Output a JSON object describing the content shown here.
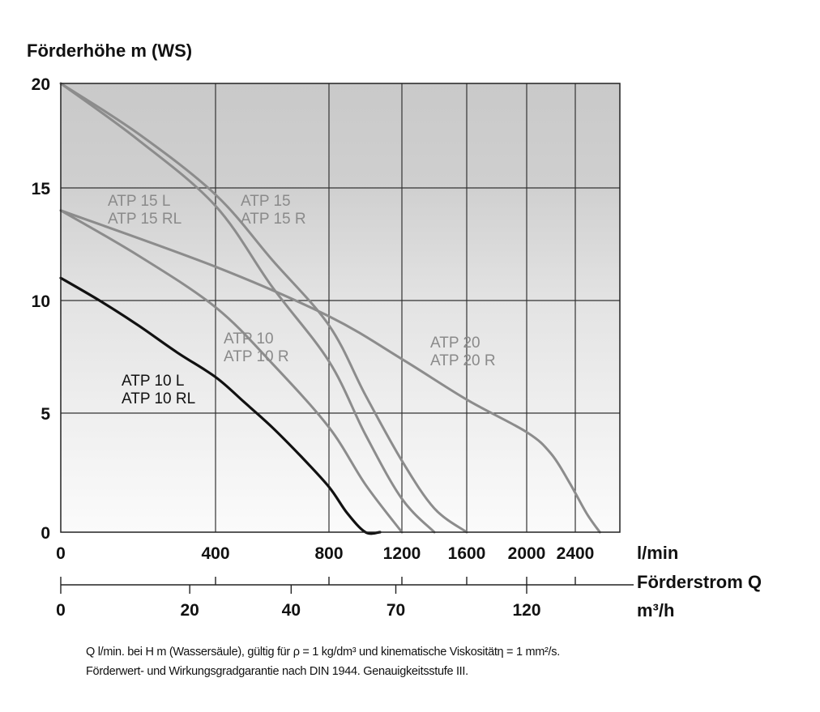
{
  "chart_data": {
    "type": "line",
    "ylabel": "Förderhöhe m (WS)",
    "ylim": [
      0,
      20
    ],
    "y_ticks": [
      "0",
      "5",
      "10",
      "15",
      "20"
    ],
    "x_unit": "l/min",
    "x_axis_title": "Förderstrom Q",
    "x_secondary_unit": "m³/h",
    "xlim": [
      0,
      2600
    ],
    "x_ticks": [
      "0",
      "400",
      "800",
      "1200",
      "1600",
      "2000",
      "2400"
    ],
    "x_secondary_ticks": [
      "0",
      "20",
      "40",
      "70",
      "120"
    ],
    "grid": true,
    "background": "gradient grey (dark at top, white at bottom)",
    "series": [
      {
        "name": "ATP 10 L / ATP 10 RL",
        "label_lines": [
          "ATP 10 L",
          "ATP 10 RL"
        ],
        "color": "#111111",
        "x": [
          0,
          100,
          200,
          300,
          400,
          500,
          600,
          700,
          800,
          900,
          1000,
          1080
        ],
        "y": [
          11,
          10.0,
          8.9,
          7.7,
          6.6,
          5.5,
          4.4,
          3.2,
          1.9,
          0.8,
          0,
          0
        ]
      },
      {
        "name": "ATP 10 / ATP 10 R",
        "label_lines": [
          "ATP 10",
          "ATP 10 R"
        ],
        "color": "#8c8c8c",
        "x": [
          0,
          200,
          400,
          600,
          800,
          1000,
          1200
        ],
        "y": [
          14,
          12.0,
          9.7,
          7.2,
          4.4,
          2.0,
          0
        ]
      },
      {
        "name": "ATP 15 L / ATP 15 RL",
        "label_lines": [
          "ATP 15 L",
          "ATP 15 RL"
        ],
        "color": "#8c8c8c",
        "x": [
          0,
          200,
          400,
          600,
          800,
          1000,
          1200,
          1400,
          1600
        ],
        "y": [
          20,
          17.6,
          14.7,
          11.8,
          8.9,
          5.8,
          3.0,
          1.0,
          0
        ]
      },
      {
        "name": "ATP 15 / ATP 15 R",
        "label_lines": [
          "ATP 15",
          "ATP 15 R"
        ],
        "color": "#8c8c8c",
        "x": [
          0,
          200,
          400,
          600,
          800,
          1000,
          1200,
          1400
        ],
        "y": [
          20,
          17.3,
          14.2,
          10.6,
          7.3,
          4.1,
          1.4,
          0
        ]
      },
      {
        "name": "ATP 20 / ATP 20 R",
        "label_lines": [
          "ATP 20",
          "ATP 20 R"
        ],
        "color": "#8c8c8c",
        "x": [
          0,
          400,
          800,
          1200,
          1600,
          2000,
          2200,
          2350,
          2450,
          2510
        ],
        "y": [
          14,
          11.5,
          9.3,
          7.4,
          5.6,
          4.2,
          3.3,
          2.1,
          0.8,
          0
        ]
      }
    ]
  },
  "notes": [
    "Q l/min. bei H m (Wassersäule), gültig für ρ = 1 kg/dm³ und kinematische Viskositätη = 1 mm²/s.",
    "Förderwert- und Wirkungsgradgarantie nach DIN 1944. Genauigkeitsstufe III."
  ]
}
